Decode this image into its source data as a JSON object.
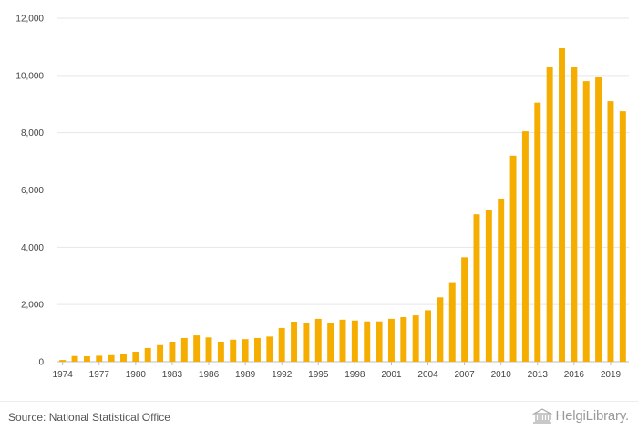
{
  "chart_data": {
    "type": "bar",
    "color": "#f5ad00",
    "x": [
      1974,
      1975,
      1976,
      1977,
      1978,
      1979,
      1980,
      1981,
      1982,
      1983,
      1984,
      1985,
      1986,
      1987,
      1988,
      1989,
      1990,
      1991,
      1992,
      1993,
      1994,
      1995,
      1996,
      1997,
      1998,
      1999,
      2000,
      2001,
      2002,
      2003,
      2004,
      2005,
      2006,
      2007,
      2008,
      2009,
      2010,
      2011,
      2012,
      2013,
      2014,
      2015,
      2016,
      2017,
      2018,
      2019,
      2020
    ],
    "values": [
      60,
      200,
      190,
      210,
      230,
      270,
      350,
      480,
      580,
      700,
      830,
      920,
      850,
      700,
      770,
      790,
      830,
      880,
      1180,
      1400,
      1350,
      1500,
      1350,
      1470,
      1440,
      1410,
      1410,
      1500,
      1560,
      1620,
      1800,
      2250,
      2750,
      3650,
      5150,
      5300,
      5700,
      7200,
      8050,
      9050,
      10300,
      10950,
      10300,
      9800,
      9950,
      9100,
      8750
    ],
    "x_tick_labels": [
      "1974",
      "1977",
      "1980",
      "1983",
      "1986",
      "1989",
      "1992",
      "1995",
      "1998",
      "2001",
      "2004",
      "2007",
      "2010",
      "2013",
      "2016",
      "2019"
    ],
    "y_ticks": [
      0,
      2000,
      4000,
      6000,
      8000,
      10000,
      12000
    ],
    "y_tick_labels": [
      "0",
      "2,000",
      "4,000",
      "6,000",
      "8,000",
      "10,000",
      "12,000"
    ],
    "ylim": [
      0,
      12000
    ],
    "grid": true,
    "title": "",
    "xlabel": "",
    "ylabel": ""
  },
  "footer": {
    "source": "Source: National Statistical Office",
    "brand": "HelgiLibrary."
  }
}
